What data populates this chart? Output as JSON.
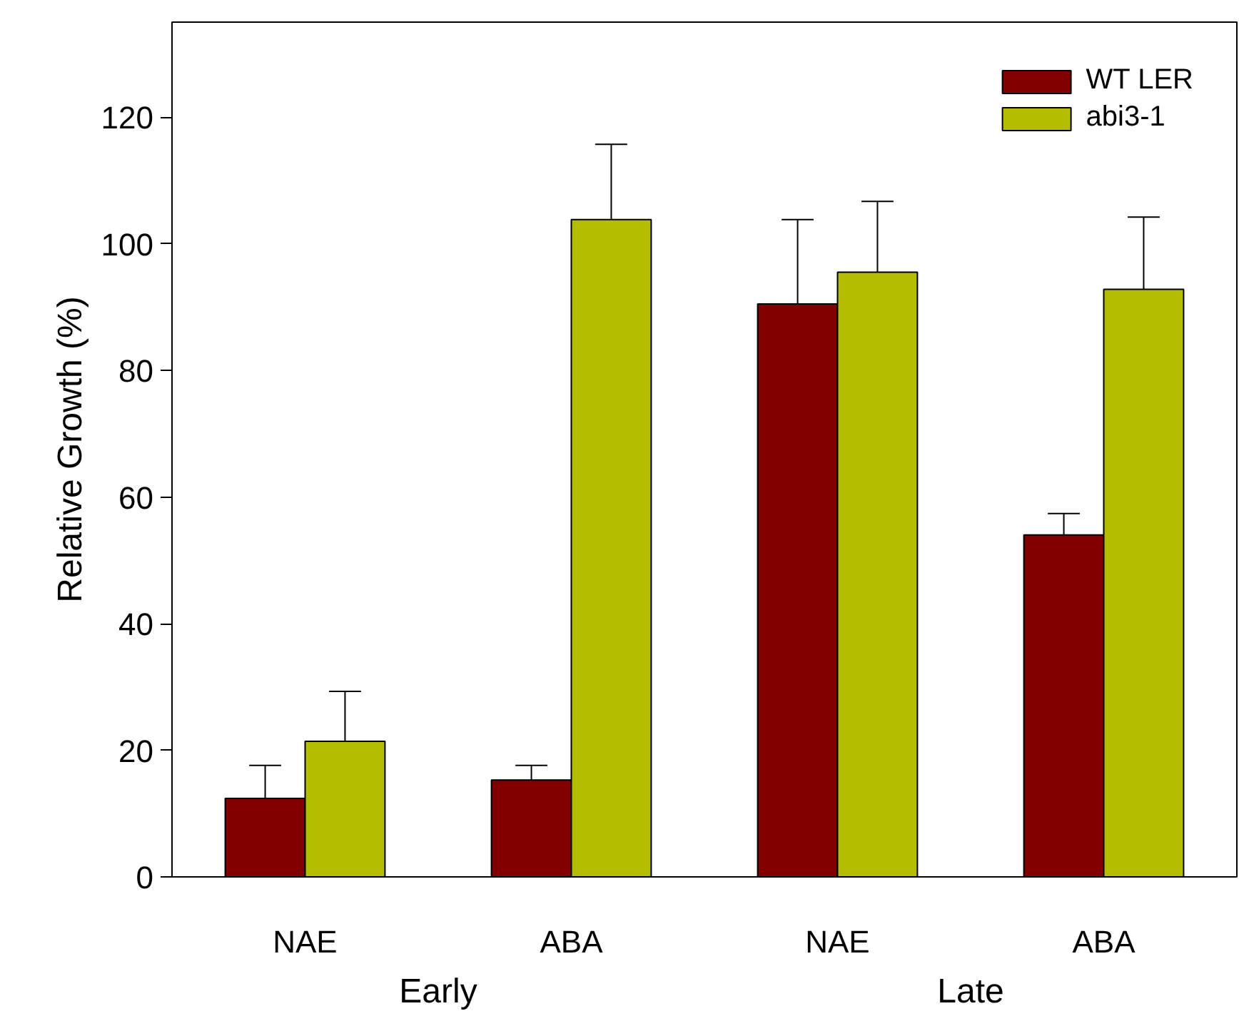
{
  "chart_data": {
    "type": "bar",
    "ylabel": "Relative Growth (%)",
    "categories": [
      "NAE",
      "ABA",
      "NAE",
      "ABA"
    ],
    "series": [
      {
        "name": "WT LER",
        "color": "#800000",
        "values": [
          12.4,
          15.3,
          90.5,
          54.0
        ],
        "errors": [
          [
            12.4,
            17.6
          ],
          [
            15.3,
            17.6
          ],
          [
            90.5,
            103.8
          ],
          [
            54.0,
            57.4
          ]
        ]
      },
      {
        "name": "abi3-1",
        "color": "#b5bd00",
        "values": [
          21.4,
          103.8,
          95.5,
          92.8
        ],
        "errors": [
          [
            21.4,
            29.3
          ],
          [
            103.8,
            115.7
          ],
          [
            95.5,
            106.7
          ],
          [
            92.8,
            104.2
          ]
        ]
      }
    ],
    "annotations": [
      "Early",
      "Late"
    ],
    "ylim": [
      0,
      135
    ],
    "yticks": [
      0,
      20,
      40,
      60,
      80,
      100,
      120
    ],
    "grid": false,
    "legend": "top right"
  }
}
